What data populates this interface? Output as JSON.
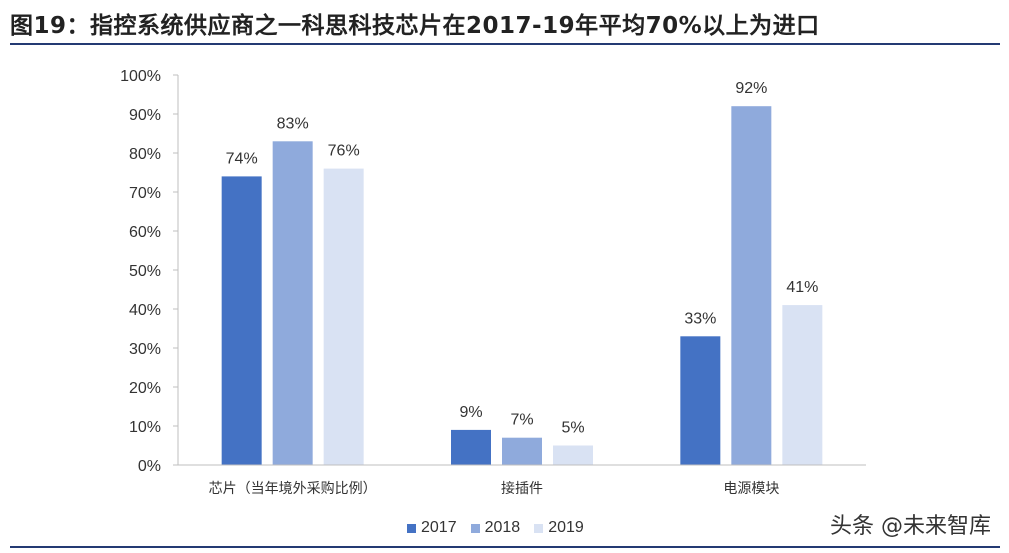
{
  "title": "图19：指控系统供应商之一科思科技芯片在2017-19年平均70%以上为进口",
  "watermark": "头条 @未来智库",
  "chart_data": {
    "type": "bar",
    "categories": [
      "芯片（当年境外采购比例）",
      "接插件",
      "电源模块"
    ],
    "series": [
      {
        "name": "2017",
        "values": [
          74,
          9,
          33
        ],
        "labels": [
          "74%",
          "9%",
          "33%"
        ],
        "color": "#4472C4"
      },
      {
        "name": "2018",
        "values": [
          83,
          7,
          92
        ],
        "labels": [
          "83%",
          "7%",
          "92%"
        ],
        "color": "#8FAADC"
      },
      {
        "name": "2019",
        "values": [
          76,
          5,
          41
        ],
        "labels": [
          "76%",
          "5%",
          "41%"
        ],
        "color": "#D9E2F3"
      }
    ],
    "yticks": [
      "0%",
      "10%",
      "20%",
      "30%",
      "40%",
      "50%",
      "60%",
      "70%",
      "80%",
      "90%",
      "100%"
    ],
    "ylim": [
      0,
      100
    ],
    "grid": false,
    "legend_position": "bottom"
  }
}
